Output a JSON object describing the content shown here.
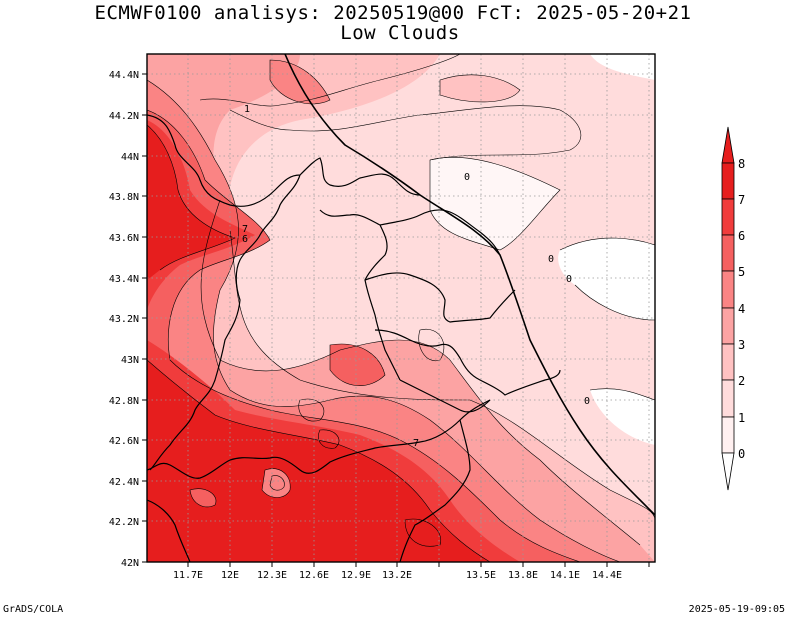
{
  "title_line1": "ECMWF0100 analisys: 20250519@00 FcT: 2025-05-20+21",
  "title_line2": "Low Clouds",
  "footer_left": "GrADS/COLA",
  "footer_right": "2025-05-19-09:05",
  "axes": {
    "lat_labels": [
      "44.4N",
      "44.2N",
      "44N",
      "43.8N",
      "43.6N",
      "43.4N",
      "43.2N",
      "43N",
      "42.8N",
      "42.6N",
      "42.4N",
      "42.2N",
      "42N"
    ],
    "lon_labels": [
      "11.7E",
      "12E",
      "12.3E",
      "12.6E",
      "12.9E",
      "13.2E",
      "13.5E",
      "13.8E",
      "14.1E",
      "14.4E"
    ]
  },
  "colorbar": {
    "labels": [
      "8",
      "7",
      "6",
      "5",
      "4",
      "3",
      "2",
      "1",
      "0"
    ],
    "colors": [
      "#e61e1e",
      "#f03c3c",
      "#f56060",
      "#fa8484",
      "#fca3a3",
      "#ffc2c2",
      "#ffdcdc",
      "#fff0f0"
    ]
  },
  "contour_labels": [
    {
      "text": "1"
    },
    {
      "text": "0"
    },
    {
      "text": "0"
    },
    {
      "text": "0"
    },
    {
      "text": "0"
    },
    {
      "text": "7"
    },
    {
      "text": "6"
    },
    {
      "text": "7"
    }
  ]
}
